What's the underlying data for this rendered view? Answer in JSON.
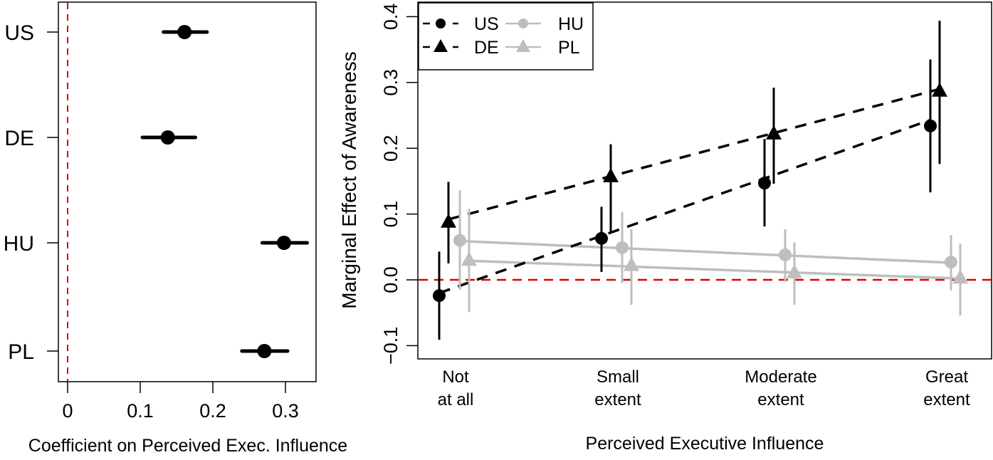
{
  "chart_data": [
    {
      "type": "scatter",
      "subtype": "coefficient-plot",
      "title": "",
      "xlabel": "Coefficient on Perceived Exec. Influence",
      "ylabel": "",
      "xlim": [
        -0.013,
        0.342
      ],
      "xticks": [
        0,
        0.1,
        0.2,
        0.3
      ],
      "xtick_labels": [
        "0",
        "0.1",
        "0.2",
        "0.3"
      ],
      "categories": [
        "US",
        "DE",
        "HU",
        "PL"
      ],
      "estimates": [
        0.161,
        0.138,
        0.298,
        0.271
      ],
      "ci_low": [
        0.132,
        0.103,
        0.268,
        0.24
      ],
      "ci_high": [
        0.192,
        0.176,
        0.33,
        0.303
      ],
      "reference_line": {
        "x": 0,
        "color": "#e00000",
        "style": "dashed"
      },
      "grid": false
    },
    {
      "type": "line",
      "subtype": "marginal-effects-with-error-bars",
      "title": "",
      "xlabel": "Perceived Executive Influence",
      "ylabel": "Marginal Effect of Awareness",
      "categories": [
        "Not\nat all",
        "Small\nextent",
        "Moderate\nextent",
        "Great\nextent"
      ],
      "category_lines": [
        [
          "Not",
          "at all"
        ],
        [
          "Small",
          "extent"
        ],
        [
          "Moderate",
          "extent"
        ],
        [
          "Great",
          "extent"
        ]
      ],
      "ylim": [
        -0.12,
        0.42
      ],
      "yticks": [
        -0.1,
        0.0,
        0.1,
        0.2,
        0.3,
        0.4
      ],
      "ytick_labels": [
        "−0.1",
        "0.0",
        "0.1",
        "0.2",
        "0.3",
        "0.4"
      ],
      "reference_line": {
        "y": 0,
        "color": "#e00000",
        "style": "dashed"
      },
      "grid": false,
      "legend": {
        "position": "top-left",
        "ncol": 2
      },
      "series": [
        {
          "name": "US",
          "color": "#000000",
          "marker": "circle",
          "line": "dashed",
          "values": [
            -0.024,
            0.063,
            0.147,
            0.234
          ],
          "ci_low": [
            -0.091,
            0.012,
            0.081,
            0.133
          ],
          "ci_high": [
            0.043,
            0.111,
            0.214,
            0.335
          ],
          "fit": [
            -0.02,
            0.068,
            0.155,
            0.243
          ]
        },
        {
          "name": "DE",
          "color": "#000000",
          "marker": "triangle",
          "line": "dashed",
          "values": [
            0.088,
            0.157,
            0.222,
            0.287
          ],
          "ci_low": [
            0.025,
            0.071,
            0.146,
            0.176
          ],
          "ci_high": [
            0.149,
            0.206,
            0.292,
            0.394
          ],
          "fit": [
            0.092,
            0.158,
            0.224,
            0.29
          ]
        },
        {
          "name": "HU",
          "color": "#bebebe",
          "marker": "circle",
          "line": "solid",
          "values": [
            0.06,
            0.049,
            0.038,
            0.027
          ],
          "ci_low": [
            -0.015,
            -0.005,
            -0.003,
            -0.016
          ],
          "ci_high": [
            0.136,
            0.103,
            0.077,
            0.068
          ],
          "fit": [
            0.059,
            0.048,
            0.037,
            0.026
          ]
        },
        {
          "name": "PL",
          "color": "#bebebe",
          "marker": "triangle",
          "line": "solid",
          "values": [
            0.03,
            0.022,
            0.011,
            0.003
          ],
          "ci_low": [
            -0.049,
            -0.038,
            -0.038,
            -0.054
          ],
          "ci_high": [
            0.108,
            0.077,
            0.057,
            0.055
          ],
          "fit": [
            0.029,
            0.02,
            0.011,
            0.002
          ]
        }
      ]
    }
  ]
}
